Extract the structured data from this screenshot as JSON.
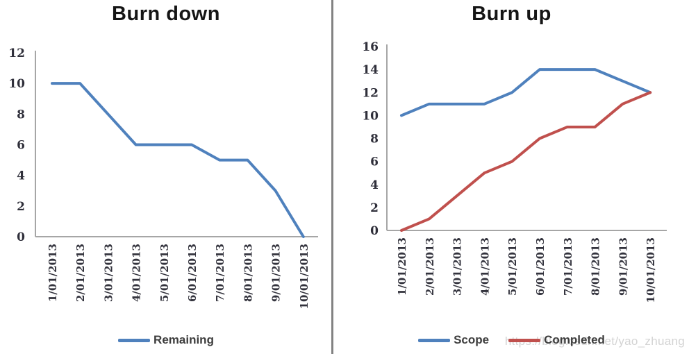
{
  "watermark": {
    "text": "https://blog.csdn.net/yao_zhuang",
    "color": "#d3d3d3"
  },
  "divider_color": "#828282",
  "palette": {
    "blue": "#4f81bd",
    "red": "#c0504d",
    "axis_gray": "#a6a6a6"
  },
  "chart_data": [
    {
      "type": "line",
      "title": "Burn down",
      "categories": [
        "1/01/2013",
        "2/01/2013",
        "3/01/2013",
        "4/01/2013",
        "5/01/2013",
        "6/01/2013",
        "7/01/2013",
        "8/01/2013",
        "9/01/2013",
        "10/01/2013"
      ],
      "series": [
        {
          "name": "Remaining",
          "color": "#4f81bd",
          "values": [
            10,
            10,
            8,
            6,
            6,
            6,
            5,
            5,
            3,
            0
          ]
        }
      ],
      "xlabel": "",
      "ylabel": "",
      "ylim": [
        0,
        12
      ],
      "ytick_step": 2,
      "yticks": [
        0,
        2,
        4,
        6,
        8,
        10,
        12
      ],
      "x_tick_rotation": -90,
      "grid": false,
      "legend_position": "bottom"
    },
    {
      "type": "line",
      "title": "Burn up",
      "categories": [
        "1/01/2013",
        "2/01/2013",
        "3/01/2013",
        "4/01/2013",
        "5/01/2013",
        "6/01/2013",
        "7/01/2013",
        "8/01/2013",
        "9/01/2013",
        "10/01/2013"
      ],
      "series": [
        {
          "name": "Scope",
          "color": "#4f81bd",
          "values": [
            10,
            11,
            11,
            11,
            12,
            14,
            14,
            14,
            13,
            12
          ]
        },
        {
          "name": "Completed",
          "color": "#c0504d",
          "values": [
            0,
            1,
            3,
            5,
            6,
            8,
            9,
            9,
            11,
            12
          ]
        }
      ],
      "xlabel": "",
      "ylabel": "",
      "ylim": [
        0,
        16
      ],
      "ytick_step": 2,
      "yticks": [
        0,
        2,
        4,
        6,
        8,
        10,
        12,
        14,
        16
      ],
      "x_tick_rotation": -90,
      "grid": false,
      "legend_position": "bottom"
    }
  ]
}
